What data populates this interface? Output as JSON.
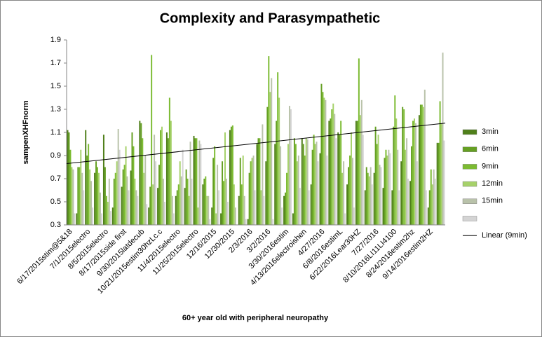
{
  "chart_data": {
    "type": "bar",
    "title": "Complexity and Parasympathetic",
    "x_label": "60+ year old with peripheral neuropathy",
    "y_label": "sampenXHFnorm",
    "ylim": [
      0.3,
      1.9
    ],
    "yticks": [
      0.3,
      0.5,
      0.7,
      0.9,
      1.1,
      1.3,
      1.5,
      1.7,
      1.9
    ],
    "legend": "right",
    "categories": [
      "6/17/2015stim@5&18",
      null,
      "7/1/2015electro",
      null,
      "8/5/2015electro",
      null,
      "8/17/2015side first",
      null,
      "9/30/2015latdecub",
      null,
      "10/21/2015estim30hzLc.c",
      null,
      "11/4/2015electro",
      null,
      "11/25/2015electro",
      null,
      "12/16/2015",
      null,
      "12/30/2015",
      null,
      "2/3/2016",
      null,
      "3/2/2016",
      null,
      "3/30/2016estim",
      null,
      "4/13/2016electroishen",
      null,
      "4/27/2016",
      null,
      "6/8/2016estimL",
      null,
      "6/22/2016Lear30HZ",
      null,
      "7/27/2016",
      null,
      "8/10/2016LI11LI4100",
      null,
      "8/24/2016estim2hz",
      null,
      "9/14/2016estim2HZ",
      null
    ],
    "series": [
      {
        "name": "3min",
        "color": "#4f7f1a",
        "values": [
          1.12,
          0.4,
          1.12,
          0.75,
          1.08,
          0.45,
          0.63,
          0.77,
          1.2,
          0.45,
          0.62,
          1.1,
          0.55,
          0.62,
          1.07,
          0.65,
          0.45,
          0.4,
          1.12,
          0.55,
          0.35,
          1.0,
          0.85,
          1.0,
          0.55,
          0.4,
          1.05,
          0.65,
          0.92,
          1.2,
          1.1,
          0.65,
          1.2,
          0.6,
          0.75,
          0.62,
          0.6,
          0.85,
          0.68,
          1.25,
          0.45,
          1.01
        ]
      },
      {
        "name": "6min",
        "color": "#66a024",
        "values": [
          1.1,
          0.8,
          0.9,
          0.85,
          0.8,
          0.7,
          0.78,
          1.1,
          1.18,
          0.63,
          0.82,
          1.05,
          0.6,
          0.78,
          1.05,
          0.7,
          0.88,
          0.85,
          1.15,
          0.88,
          0.75,
          1.05,
          1.32,
          1.2,
          0.58,
          1.05,
          1.0,
          0.95,
          1.52,
          1.22,
          1.08,
          0.8,
          1.2,
          0.8,
          1.15,
          0.88,
          1.15,
          1.32,
          0.98,
          1.34,
          0.6,
          1.01
        ]
      },
      {
        "name": "9min",
        "color": "#7cbb32",
        "values": [
          0.95,
          0.8,
          1.0,
          0.8,
          0.55,
          0.75,
          0.82,
          0.98,
          1.05,
          1.77,
          1.12,
          1.4,
          0.65,
          0.7,
          1.05,
          0.72,
          0.98,
          0.68,
          1.16,
          0.65,
          0.85,
          1.05,
          1.76,
          1.62,
          0.75,
          1.0,
          0.9,
          1.08,
          1.45,
          1.3,
          1.2,
          0.9,
          1.74,
          0.75,
          1.0,
          0.95,
          1.42,
          1.3,
          1.2,
          1.34,
          0.78,
          1.37
        ]
      },
      {
        "name": "12min",
        "color": "#a6d16a",
        "values": [
          0.8,
          0.95,
          0.78,
          0.75,
          0.5,
          0.85,
          0.98,
          0.7,
          0.75,
          0.65,
          1.15,
          1.2,
          0.85,
          0.55,
          0.45,
          0.55,
          0.4,
          1.1,
          0.65,
          0.9,
          0.88,
          0.6,
          1.45,
          1.4,
          1.0,
          0.85,
          1.05,
          1.0,
          1.4,
          1.35,
          0.75,
          1.1,
          1.25,
          0.72,
          1.08,
          0.9,
          1.22,
          0.95,
          1.22,
          1.32,
          0.65,
          1.18
        ]
      },
      {
        "name": "15min",
        "color": "#b9c2aa",
        "values": [
          0.78,
          0.75,
          0.68,
          0.58,
          0.7,
          1.13,
          0.72,
          0.6,
          0.9,
          1.08,
          0.7,
          0.55,
          0.72,
          1.02,
          1.03,
          0.55,
          0.82,
          0.7,
          0.45,
          0.55,
          0.9,
          1.17,
          1.57,
          0.98,
          1.33,
          0.9,
          1.04,
          1.02,
          1.38,
          1.26,
          0.85,
          0.88,
          1.38,
          0.8,
          0.82,
          0.95,
          0.95,
          1.05,
          1.18,
          1.47,
          0.78,
          1.79
        ]
      },
      {
        "color": "#d4d4d4",
        "values": [
          0.4,
          0.6,
          0.45,
          0.4,
          0.42,
          0.95,
          0.6,
          0.55,
          0.48,
          0.85,
          0.5,
          0.4,
          0.95,
          0.7,
          1.0,
          0.35,
          0.6,
          0.5,
          0.3,
          0.35,
          0.6,
          0.55,
          0.35,
          0.45,
          1.3,
          0.62,
          0.6,
          0.85,
          0.9,
          1.05,
          0.4,
          0.45,
          1.08,
          0.65,
          0.8,
          0.92,
          0.6,
          0.7,
          0.85,
          0.6,
          0.7,
          1.03
        ]
      }
    ],
    "trendline": {
      "name": "Linear (9min)",
      "color": "#000000",
      "values": [
        0.83,
        1.18
      ]
    }
  }
}
